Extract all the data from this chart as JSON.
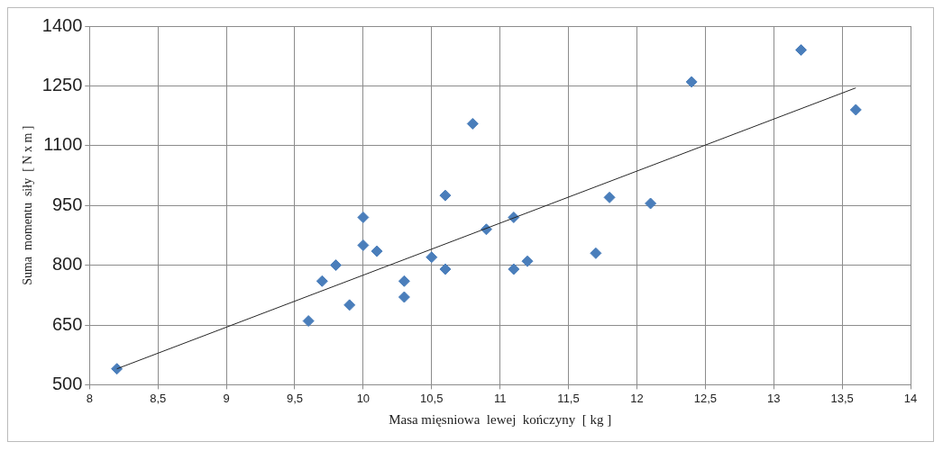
{
  "chart_data": {
    "type": "scatter",
    "xlabel": "Masa mięsniowa  lewej  kończyny  [ kg ]",
    "ylabel": "Suma  momentu  siły  [ N x m ]",
    "xlim": [
      8,
      14
    ],
    "xticks": [
      8,
      {
        "value": 8.5,
        "label": "8,5"
      },
      9,
      {
        "value": 9.5,
        "label": "9,5"
      },
      10,
      {
        "value": 10.5,
        "label": "10,5"
      },
      11,
      {
        "value": 11.5,
        "label": "11,5"
      },
      12,
      {
        "value": 12.5,
        "label": "12,5"
      },
      13,
      {
        "value": 13.5,
        "label": "13,5"
      },
      14
    ],
    "ylim": [
      500,
      1400
    ],
    "yticks": [
      500,
      650,
      800,
      950,
      1100,
      1250,
      1400
    ],
    "grid": true,
    "legend": false,
    "marker": "diamond",
    "series": [
      {
        "color": "#4a7ebb",
        "x": [
          8.2,
          9.6,
          9.7,
          9.8,
          9.9,
          10.0,
          10.0,
          10.1,
          10.3,
          10.3,
          10.5,
          10.6,
          10.6,
          10.8,
          10.9,
          11.1,
          11.1,
          11.2,
          11.7,
          11.8,
          12.1,
          12.4,
          13.2,
          13.6
        ],
        "values": [
          540,
          660,
          760,
          800,
          700,
          920,
          850,
          835,
          760,
          720,
          820,
          975,
          790,
          1155,
          890,
          920,
          790,
          810,
          830,
          970,
          955,
          1260,
          1340,
          1190
        ]
      },
      {
        "type": "line",
        "color": "#262626",
        "x": [
          8.2,
          13.6
        ],
        "values": [
          540,
          1245
        ],
        "marker": "none"
      }
    ]
  }
}
